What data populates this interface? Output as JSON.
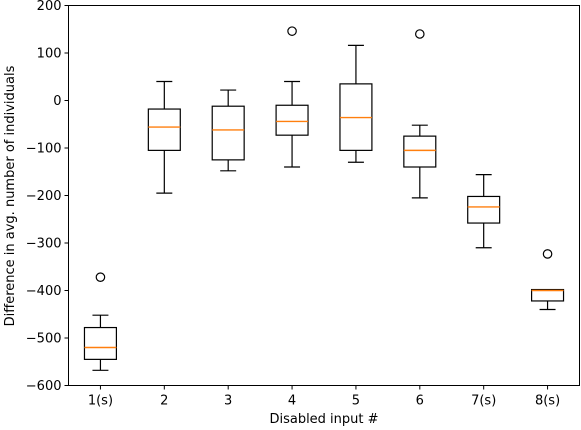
{
  "chart_data": {
    "type": "box",
    "xlabel": "Disabled input #",
    "ylabel": "Difference in avg. number of individuals",
    "ylim": [
      -600,
      200
    ],
    "yticks": [
      -600,
      -500,
      -400,
      -300,
      -200,
      -100,
      0,
      100,
      200
    ],
    "grid": false,
    "categories": [
      "1(s)",
      "2",
      "3",
      "4",
      "5",
      "6",
      "7(s)",
      "8(s)"
    ],
    "boxes": [
      {
        "label": "1(s)",
        "whisker_low": -568,
        "q1": -545,
        "median": -520,
        "q3": -478,
        "whisker_high": -452,
        "outliers": [
          -372
        ]
      },
      {
        "label": "2",
        "whisker_low": -195,
        "q1": -105,
        "median": -56,
        "q3": -18,
        "whisker_high": 40,
        "outliers": []
      },
      {
        "label": "3",
        "whisker_low": -148,
        "q1": -125,
        "median": -62,
        "q3": -12,
        "whisker_high": 22,
        "outliers": []
      },
      {
        "label": "4",
        "whisker_low": -140,
        "q1": -73,
        "median": -44,
        "q3": -10,
        "whisker_high": 40,
        "outliers": [
          146
        ]
      },
      {
        "label": "5",
        "whisker_low": -130,
        "q1": -105,
        "median": -36,
        "q3": 35,
        "whisker_high": 116,
        "outliers": []
      },
      {
        "label": "6",
        "whisker_low": -205,
        "q1": -140,
        "median": -105,
        "q3": -75,
        "whisker_high": -52,
        "outliers": [
          140
        ]
      },
      {
        "label": "7(s)",
        "whisker_low": -310,
        "q1": -258,
        "median": -224,
        "q3": -202,
        "whisker_high": -156,
        "outliers": []
      },
      {
        "label": "8(s)",
        "whisker_low": -440,
        "q1": -422,
        "median": -400,
        "q3": -398,
        "whisker_high": -398,
        "outliers": [
          -323
        ]
      }
    ],
    "colors": {
      "box": "#000000",
      "median": "#ff7f0e",
      "background": "#ffffff"
    }
  }
}
